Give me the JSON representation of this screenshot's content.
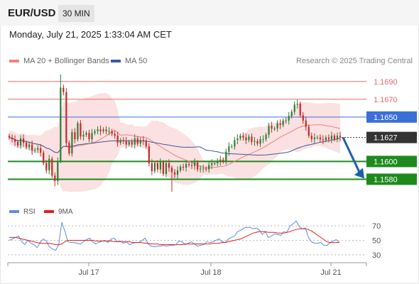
{
  "header": {
    "pair": "EUR/USD",
    "timeframe": "30 MIN"
  },
  "datetime": "Monday, July 21, 2025 1:33:04 AM CET",
  "legend": {
    "ma20": "MA 20 + Bollinger Bands",
    "ma50": "MA 50"
  },
  "credit": "Research © 2025 Trading Central",
  "rsi_legend": {
    "rsi": "RSI",
    "ma": "9MA"
  },
  "colors": {
    "ma20": "#f08080",
    "ma50": "#3a5ba0",
    "bollinger": "#fadcdc",
    "up": "#2e7d32",
    "down": "#c62828",
    "support": "#1e8a1e",
    "pivot": "#3a6fd8",
    "resistance": "#e36b6b",
    "last": "#333333",
    "rsi": "#5b8fe0",
    "rsi_ma": "#e02020",
    "arrow": "#1f5fa8"
  },
  "chart_data": [
    {
      "type": "candlestick",
      "title": "EUR/USD 30 MIN",
      "ylim": [
        1.155,
        1.1705
      ],
      "x_labels": [
        "Jul 17",
        "Jul 18",
        "Jul 21"
      ],
      "levels": [
        {
          "label": "1.1690",
          "value": 1.169,
          "kind": "resistance"
        },
        {
          "label": "1.1670",
          "value": 1.167,
          "kind": "resistance"
        },
        {
          "label": "1.1650",
          "value": 1.165,
          "kind": "pivot"
        },
        {
          "label": "1.1627",
          "value": 1.1627,
          "kind": "last"
        },
        {
          "label": "1.1600",
          "value": 1.16,
          "kind": "support"
        },
        {
          "label": "1.1580",
          "value": 1.158,
          "kind": "support"
        }
      ],
      "close": [
        1.1627,
        1.1625,
        1.1622,
        1.1618,
        1.1626,
        1.1621,
        1.1616,
        1.1619,
        1.1612,
        1.1613,
        1.1615,
        1.161,
        1.1598,
        1.159,
        1.1603,
        1.1584,
        1.1578,
        1.16,
        1.1683,
        1.1678,
        1.1621,
        1.1609,
        1.1633,
        1.1625,
        1.1643,
        1.1628,
        1.163,
        1.1632,
        1.1625,
        1.1632,
        1.1634,
        1.1636,
        1.1634,
        1.1636,
        1.1634,
        1.1634,
        1.1631,
        1.1629,
        1.1621,
        1.1624,
        1.1623,
        1.1619,
        1.1622,
        1.1619,
        1.1626,
        1.162,
        1.1624,
        1.1623,
        1.1617,
        1.1598,
        1.1589,
        1.1598,
        1.1591,
        1.1599,
        1.1586,
        1.1598,
        1.1593,
        1.1588,
        1.1585,
        1.159,
        1.1594,
        1.1593,
        1.1597,
        1.1596,
        1.1595,
        1.1599,
        1.1591,
        1.1592,
        1.1592,
        1.1591,
        1.1596,
        1.1598,
        1.1598,
        1.16,
        1.1602,
        1.16,
        1.1611,
        1.1617,
        1.1617,
        1.1624,
        1.1626,
        1.1629,
        1.1627,
        1.1624,
        1.1628,
        1.1622,
        1.1623,
        1.162,
        1.1625,
        1.1625,
        1.163,
        1.164,
        1.1637,
        1.1637,
        1.1643,
        1.1641,
        1.1646,
        1.1646,
        1.1651,
        1.1656,
        1.1664,
        1.1665,
        1.1652,
        1.1646,
        1.1639,
        1.1629,
        1.1625,
        1.1627,
        1.1627,
        1.1625,
        1.1624,
        1.1627,
        1.1625,
        1.1629,
        1.1625,
        1.1629,
        1.1627
      ],
      "ma20_endpoints": [
        1.1617,
        1.1637
      ],
      "ma50_endpoints": [
        1.1623,
        1.1631
      ],
      "arrow": {
        "from": 1.1627,
        "to": 1.158
      }
    },
    {
      "type": "line",
      "title": "RSI",
      "y_ticks": [
        "70",
        "50",
        "30"
      ],
      "ylim": [
        20,
        80
      ],
      "series": [
        {
          "name": "RSI",
          "values": [
            50,
            52,
            54,
            56,
            48,
            44,
            50,
            46,
            44,
            40,
            47,
            52,
            49,
            41,
            38,
            36,
            44,
            75,
            63,
            48,
            47,
            47,
            46,
            45,
            48,
            51,
            53,
            48,
            45,
            47,
            49,
            50,
            47,
            52,
            53,
            48,
            49,
            46,
            48,
            44,
            46,
            47,
            47,
            50,
            53,
            45,
            42,
            41,
            42,
            42,
            43,
            42,
            43,
            43,
            44,
            49,
            48,
            44,
            46,
            48,
            45,
            42,
            43,
            44,
            48,
            47,
            48,
            50,
            52,
            48,
            47,
            52,
            54,
            56,
            62,
            64,
            67,
            68,
            68,
            66,
            67,
            65,
            58,
            62,
            54,
            56,
            59,
            58,
            57,
            62,
            61,
            70,
            73,
            77,
            69,
            66,
            67,
            54,
            48,
            46,
            46,
            47,
            43,
            43,
            47,
            49,
            51,
            47
          ]
        },
        {
          "name": "9MA",
          "values": [
            54,
            54,
            54,
            53,
            52,
            51,
            50,
            49,
            48,
            47,
            46,
            46,
            46,
            46,
            45,
            44,
            44,
            45,
            48,
            50,
            50,
            50,
            50,
            50,
            50,
            50,
            50,
            50,
            49,
            49,
            49,
            49,
            49,
            49,
            48,
            48,
            48,
            48,
            48,
            48,
            47,
            47,
            47,
            47,
            46,
            46,
            45,
            45,
            45,
            44,
            44,
            44,
            44,
            44,
            44,
            44,
            44,
            45,
            45,
            45,
            45,
            45,
            45,
            45,
            45,
            45,
            46,
            46,
            46,
            47,
            47,
            48,
            49,
            50,
            51,
            52,
            54,
            56,
            58,
            60,
            61,
            62,
            62,
            62,
            61,
            61,
            61,
            60,
            60,
            60,
            61,
            62,
            64,
            65,
            66,
            66,
            66,
            65,
            63,
            60,
            57,
            54,
            51,
            48,
            47,
            47,
            47,
            47
          ]
        }
      ]
    }
  ]
}
